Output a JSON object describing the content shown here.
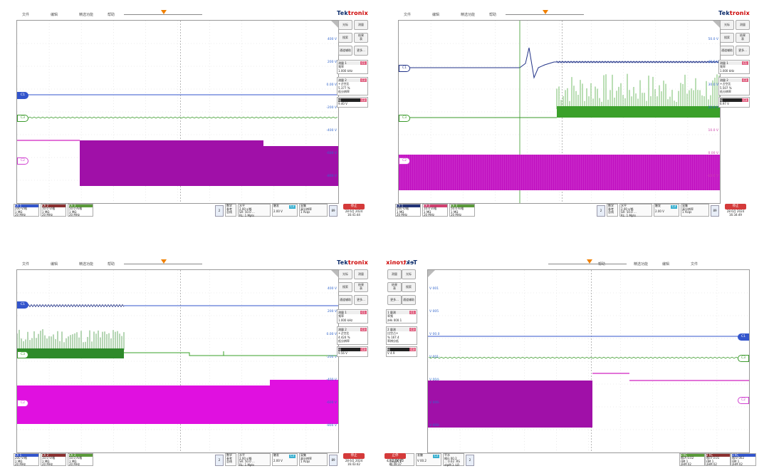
{
  "brand": {
    "prefix": "Tek",
    "suffix": "tronix"
  },
  "menu": [
    "文件",
    "编辑",
    "精选功能",
    "帮助"
  ],
  "side_buttons": [
    [
      "光标",
      "测量"
    ],
    [
      "搜索",
      "结果\n表"
    ],
    [
      "通道辅助",
      "更多..."
    ]
  ],
  "scopes": [
    {
      "id": "s1",
      "vlabels": [
        "400 V",
        "200 V",
        "0.00 V",
        "-200 V",
        "-400 V",
        "-600 V",
        "-800 V"
      ],
      "meas1": {
        "title": "测量 1",
        "tag": "C1",
        "name": "频率",
        "value": "1.000 kHz"
      },
      "meas2": {
        "title": "测量 2",
        "tag": "C3",
        "name": "+占空比",
        "value": "5.377 %",
        "extra": "低分辨率"
      },
      "meas3": {
        "title": "幅",
        "tag": "C3",
        "value": "9.40 V"
      },
      "channels": [
        {
          "tag": "Ch 1",
          "color": "#3355cc",
          "lines": [
            "200 V/格",
            "1 MΩ",
            "20 MHz"
          ]
        },
        {
          "tag": "Ch 2",
          "color": "#8a3030",
          "lines": [
            "10.0 V/格",
            "1 MΩ",
            "20 MHz"
          ]
        },
        {
          "tag": "Ch 3",
          "color": "#5a9a3a",
          "lines": [
            "50.0 A/格",
            "1 MΩ",
            "20 MHz"
          ]
        }
      ],
      "horizontal": {
        "title": "水平",
        "lines": [
          "2.00 s/格",
          "SR: 50.0 ...",
          "RL: 1 Mpts"
        ]
      },
      "trigger": {
        "title": "触发",
        "tag": "C3",
        "value": "2.00 V"
      },
      "acquire": {
        "title": "采集",
        "lines": [
          "高分辨率",
          "1 Acqs"
        ]
      },
      "stop": "停止",
      "date": "28 6月 2024",
      "time": "16:41:44"
    },
    {
      "id": "s2",
      "vlabels": [
        "50.0 V",
        "40.0 V",
        "30.0 V",
        "20.0 V",
        "10.0 V",
        "0.00 V",
        "-10.0 V"
      ],
      "meas1": {
        "title": "测量 1",
        "tag": "C1",
        "name": "频率",
        "value": "1.000 kHz"
      },
      "meas2": {
        "title": "测量 2",
        "tag": "C3",
        "name": "+占空比",
        "value": "5.507 %",
        "extra": "低分辨率"
      },
      "meas3": {
        "title": "幅",
        "tag": "C3",
        "value": "6.97 V"
      },
      "channels": [
        {
          "tag": "Ch 1",
          "color": "#223377",
          "lines": [
            "500 V/格",
            "1 MΩ",
            "20 MHz"
          ]
        },
        {
          "tag": "Ch 2",
          "color": "#d04070",
          "lines": [
            "10.0 V/格",
            "1 MΩ",
            "20 MHz"
          ]
        },
        {
          "tag": "Ch 3",
          "color": "#5a9a3a",
          "lines": [
            "50.0 A/格",
            "1 MΩ",
            "20 MHz"
          ]
        }
      ],
      "horizontal": {
        "title": "水平",
        "lines": [
          "2.00 s/格",
          "SR: 50.0 ...",
          "RL: 1 Mpts"
        ]
      },
      "trigger": {
        "title": "触发",
        "tag": "C3",
        "value": "2.00 V"
      },
      "acquire": {
        "title": "采集",
        "lines": [
          "高分辨率",
          "1 Acqs"
        ]
      },
      "stop": "停止",
      "date": "28 6月 2024",
      "time": "16:34:49"
    },
    {
      "id": "s3",
      "vlabels": [
        "400 V",
        "200 V",
        "0.00 V",
        "-200 V",
        "-400 V",
        "-600 V",
        "-800 V"
      ],
      "meas1": {
        "title": "测量 1",
        "tag": "C1",
        "name": "频率",
        "value": "1.000 kHz"
      },
      "meas2": {
        "title": "测量 2",
        "tag": "C3",
        "name": "+占空比",
        "value": "4.424 %",
        "extra": "低分辨率"
      },
      "meas3": {
        "title": "幅",
        "tag": "C3",
        "value": "9.56 V"
      },
      "channels": [
        {
          "tag": "Ch 1",
          "color": "#3355cc",
          "lines": [
            "200 V/格",
            "1 MΩ",
            "20 MHz"
          ]
        },
        {
          "tag": "Ch 2",
          "color": "#8a3030",
          "lines": [
            "10.0 V/格",
            "1 MΩ",
            "20 MHz"
          ]
        },
        {
          "tag": "Ch 3",
          "color": "#5a9a3a",
          "lines": [
            "50.0 A/格",
            "1 MΩ",
            "20 MHz"
          ]
        }
      ],
      "horizontal": {
        "title": "水平",
        "lines": [
          "2.00 s/格",
          "SR: 50.0 ...",
          "RL: 1 Mpts"
        ]
      },
      "trigger": {
        "title": "触发",
        "tag": "C3",
        "value": "2.00 V"
      },
      "acquire": {
        "title": "采集",
        "lines": [
          "高分辨率",
          "1 Acqs"
        ]
      },
      "stop": "停止",
      "date": "28 6月 2024",
      "time": "16:43:42"
    },
    {
      "id": "s4",
      "vlabels": [
        "V 001",
        "V 005",
        "V 00.0",
        "V 001-",
        "V 004-",
        "V 006-",
        "V 008-"
      ],
      "meas1": {
        "title": "1 量测",
        "tag": "C1",
        "name": "率频",
        "value": "zHk 000.1"
      },
      "meas2": {
        "title": "2 量测",
        "tag": "C3",
        "name": "比空占+",
        "value": "% 167.4",
        "extra": "率辨分低"
      },
      "meas3": {
        "title": "幅",
        "tag": "C3",
        "value": "V 4.9"
      },
      "channels": [
        {
          "tag": "1 hC",
          "color": "#3355cc",
          "lines": [
            "格/V 002",
            "ΩM 1",
            "zHM 02"
          ]
        },
        {
          "tag": "2 hC",
          "color": "#8a3030",
          "lines": [
            "格/V 0.01",
            "ΩM 1",
            "zHM 02"
          ]
        },
        {
          "tag": "3 hC",
          "color": "#5a9a3a",
          "lines": [
            "格/A 0.02",
            "ΩM 1",
            "zHM 02"
          ]
        }
      ],
      "horizontal": {
        "title": "平水",
        "lines": [
          "格/s 00.2",
          "... 0.02 :RS",
          "stpM 1 :LR"
        ]
      },
      "trigger": {
        "title": "发触",
        "tag": "C3",
        "value": "V 00.2"
      },
      "acquire": {
        "title": "集采",
        "lines": [
          "率辨分高",
          "sqcA 1"
        ]
      },
      "stop": "止停",
      "date": "4202 月6 82",
      "time": "16:49:37"
    }
  ]
}
